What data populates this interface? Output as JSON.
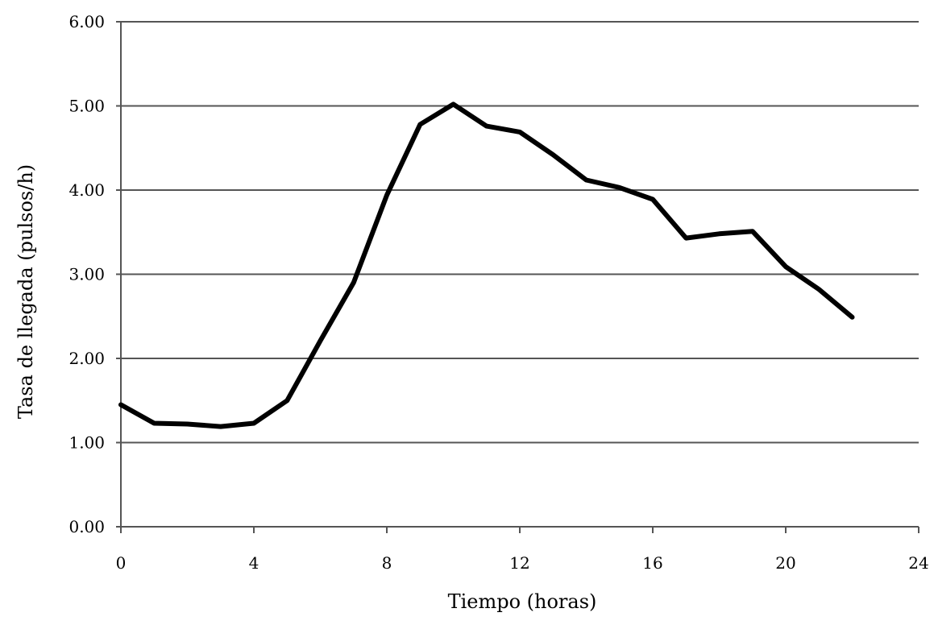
{
  "chart_data": {
    "type": "line",
    "title": "",
    "xlabel": "Tiempo (horas)",
    "ylabel": "Tasa de llegada (pulsos/h)",
    "xlim": [
      0,
      24
    ],
    "ylim": [
      0,
      6
    ],
    "x_ticks": [
      "0",
      "4",
      "8",
      "12",
      "16",
      "20",
      "24"
    ],
    "x_tick_values": [
      0,
      4,
      8,
      12,
      16,
      20,
      24
    ],
    "y_ticks": [
      "0.00",
      "1.00",
      "2.00",
      "3.00",
      "4.00",
      "5.00",
      "6.00"
    ],
    "y_tick_values": [
      0,
      1,
      2,
      3,
      4,
      5,
      6
    ],
    "grid": "horizontal",
    "legend": "none",
    "series": [
      {
        "color": "#000000",
        "x": [
          0,
          1,
          2,
          3,
          4,
          5,
          6,
          7,
          8,
          9,
          10,
          11,
          12,
          13,
          14,
          15,
          16,
          17,
          18,
          19,
          20,
          21,
          22
        ],
        "values": [
          1.45,
          1.23,
          1.22,
          1.19,
          1.23,
          1.5,
          2.21,
          2.9,
          3.94,
          4.78,
          5.02,
          4.76,
          4.69,
          4.42,
          4.12,
          4.03,
          3.89,
          3.43,
          3.48,
          3.51,
          3.09,
          2.82,
          2.49
        ]
      }
    ]
  }
}
